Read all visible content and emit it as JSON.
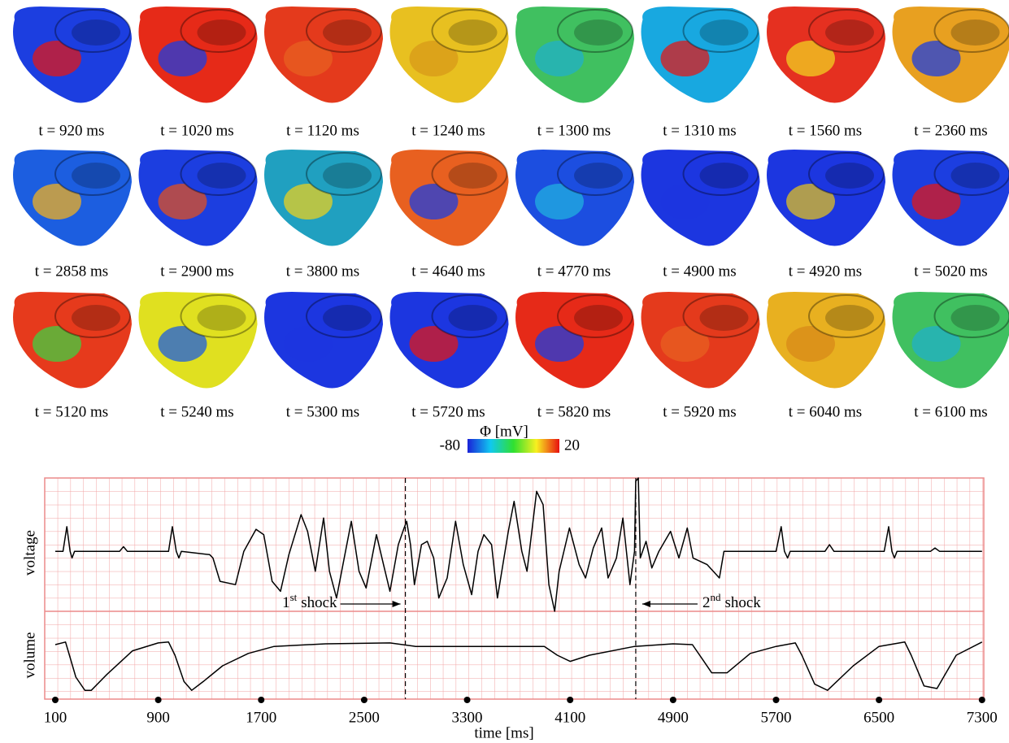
{
  "panels": [
    {
      "label": "t = 920 ms"
    },
    {
      "label": "t = 1020 ms"
    },
    {
      "label": "t = 1120 ms"
    },
    {
      "label": "t = 1240 ms"
    },
    {
      "label": "t = 1300 ms"
    },
    {
      "label": "t = 1310 ms"
    },
    {
      "label": "t = 1560 ms"
    },
    {
      "label": "t = 2360 ms"
    },
    {
      "label": "t = 2858 ms"
    },
    {
      "label": "t = 2900 ms"
    },
    {
      "label": "t = 3800 ms"
    },
    {
      "label": "t = 4640 ms"
    },
    {
      "label": "t = 4770 ms"
    },
    {
      "label": "t = 4900 ms"
    },
    {
      "label": "t = 4920 ms"
    },
    {
      "label": "t = 5020 ms"
    },
    {
      "label": "t = 5120 ms"
    },
    {
      "label": "t = 5240 ms"
    },
    {
      "label": "t = 5300 ms"
    },
    {
      "label": "t = 5720 ms"
    },
    {
      "label": "t = 5820 ms"
    },
    {
      "label": "t = 5920 ms"
    },
    {
      "label": "t = 6040 ms"
    },
    {
      "label": "t = 6100 ms"
    }
  ],
  "colorbar": {
    "title": "Φ [mV]",
    "min": -80,
    "max": 20
  },
  "chart_data": {
    "type": "line",
    "x_label": "time [ms]",
    "xlim": [
      18,
      7314
    ],
    "xticks": [
      100,
      900,
      1700,
      2500,
      3300,
      4100,
      4900,
      5700,
      6500,
      7300
    ],
    "series": [
      {
        "name": "voltage",
        "color": "#000000",
        "ylim": [
          -0.9,
          1.1
        ],
        "x": [
          100,
          160,
          190,
          215,
          230,
          250,
          600,
          630,
          660,
          980,
          1010,
          1040,
          1060,
          1080,
          1300,
          1325,
          1380,
          1500,
          1565,
          1660,
          1720,
          1785,
          1850,
          1915,
          2010,
          2060,
          2120,
          2185,
          2230,
          2285,
          2325,
          2400,
          2460,
          2515,
          2595,
          2650,
          2700,
          2765,
          2810,
          2830,
          2860,
          2890,
          2945,
          2990,
          3040,
          3080,
          3145,
          3210,
          3270,
          3335,
          3385,
          3430,
          3490,
          3535,
          3620,
          3665,
          3725,
          3765,
          3840,
          3890,
          3935,
          3980,
          4015,
          4095,
          4170,
          4220,
          4280,
          4345,
          4395,
          4460,
          4510,
          4565,
          4600,
          4610,
          4630,
          4645,
          4690,
          4735,
          4790,
          4880,
          4945,
          5010,
          5055,
          5165,
          5260,
          5295,
          5700,
          5740,
          5765,
          5790,
          5810,
          5830,
          6080,
          6115,
          6150,
          6540,
          6575,
          6600,
          6620,
          6640,
          6900,
          6935,
          6970,
          7300
        ],
        "values": [
          0,
          0,
          0.37,
          0,
          -0.1,
          0,
          0,
          0.07,
          0,
          0,
          0.37,
          0,
          -0.1,
          0,
          -0.05,
          -0.1,
          -0.45,
          -0.5,
          0,
          0.33,
          0.25,
          -0.45,
          -0.6,
          -0.05,
          0.55,
          0.3,
          -0.3,
          0.5,
          -0.3,
          -0.7,
          -0.3,
          0.45,
          -0.3,
          -0.55,
          0.25,
          -0.2,
          -0.6,
          0.1,
          0.35,
          0.45,
          0.1,
          -0.5,
          0.1,
          0.15,
          -0.1,
          -0.7,
          -0.4,
          0.45,
          -0.2,
          -0.65,
          0,
          0.25,
          0.1,
          -0.7,
          0.3,
          0.75,
          0,
          -0.3,
          0.9,
          0.7,
          -0.5,
          -0.9,
          -0.3,
          0.35,
          -0.2,
          -0.4,
          0.05,
          0.35,
          -0.4,
          -0.1,
          0.5,
          -0.5,
          0,
          1.05,
          1.1,
          -0.1,
          0.15,
          -0.25,
          0,
          0.3,
          -0.1,
          0.35,
          -0.1,
          -0.2,
          -0.4,
          0,
          0,
          0.37,
          0,
          -0.1,
          0,
          0,
          0,
          0.1,
          0,
          0,
          0.37,
          0,
          -0.1,
          0,
          0,
          0.05,
          0,
          0
        ]
      },
      {
        "name": "volume",
        "color": "#000000",
        "ylim": [
          0,
          1
        ],
        "x": [
          100,
          180,
          200,
          260,
          330,
          380,
          500,
          700,
          900,
          980,
          1030,
          1100,
          1160,
          1250,
          1400,
          1600,
          1800,
          2200,
          2700,
          2900,
          3200,
          3600,
          3900,
          4000,
          4100,
          4250,
          4600,
          4900,
          5050,
          5130,
          5200,
          5320,
          5500,
          5700,
          5850,
          5900,
          6000,
          6100,
          6300,
          6500,
          6700,
          6750,
          6850,
          6950,
          7100,
          7300
        ],
        "values": [
          0.62,
          0.65,
          0.55,
          0.25,
          0.1,
          0.1,
          0.28,
          0.55,
          0.64,
          0.65,
          0.5,
          0.2,
          0.1,
          0.2,
          0.38,
          0.52,
          0.6,
          0.63,
          0.64,
          0.6,
          0.6,
          0.6,
          0.6,
          0.5,
          0.43,
          0.5,
          0.6,
          0.63,
          0.62,
          0.45,
          0.3,
          0.3,
          0.52,
          0.6,
          0.64,
          0.5,
          0.17,
          0.1,
          0.38,
          0.6,
          0.65,
          0.5,
          0.15,
          0.12,
          0.5,
          0.65
        ]
      }
    ],
    "annotations": [
      {
        "x": 2820,
        "ordinal": "1",
        "suffix": "st",
        "text": "shock"
      },
      {
        "x": 4610,
        "ordinal": "2",
        "suffix": "nd",
        "text": "shock"
      }
    ]
  }
}
